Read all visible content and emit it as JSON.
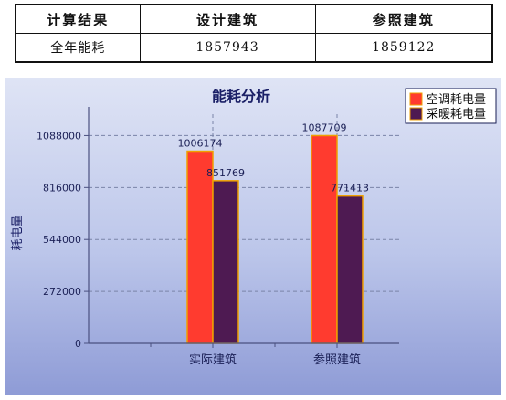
{
  "table": {
    "headers": [
      "计算结果",
      "设计建筑",
      "参照建筑"
    ],
    "rows": [
      [
        "全年能耗",
        "1857943",
        "1859122"
      ]
    ]
  },
  "chart_data": {
    "type": "bar",
    "title": "能耗分析",
    "xlabel": "",
    "ylabel": "耗电量",
    "categories": [
      "实际建筑",
      "参照建筑"
    ],
    "series": [
      {
        "name": "空调耗电量",
        "values": [
          1006174,
          1087709
        ],
        "color": "#ff3b2f"
      },
      {
        "name": "采暖耗电量",
        "values": [
          851769,
          771413
        ],
        "color": "#4e1a52"
      }
    ],
    "data_labels": [
      [
        "1006174",
        "851769"
      ],
      [
        "1087709",
        "771413"
      ]
    ],
    "yticks": [
      0,
      272000,
      544000,
      816000,
      1088000
    ],
    "ytick_labels": [
      "0",
      "272000",
      "544000",
      "816000",
      "1088000"
    ],
    "ylim": [
      0,
      1200000
    ],
    "grid": true,
    "legend_position": "top-right",
    "colors": {
      "bar_border": "#f0a000",
      "gridline": "#7a84a8",
      "axis": "#4a5080",
      "title": "#1a1f66"
    }
  }
}
